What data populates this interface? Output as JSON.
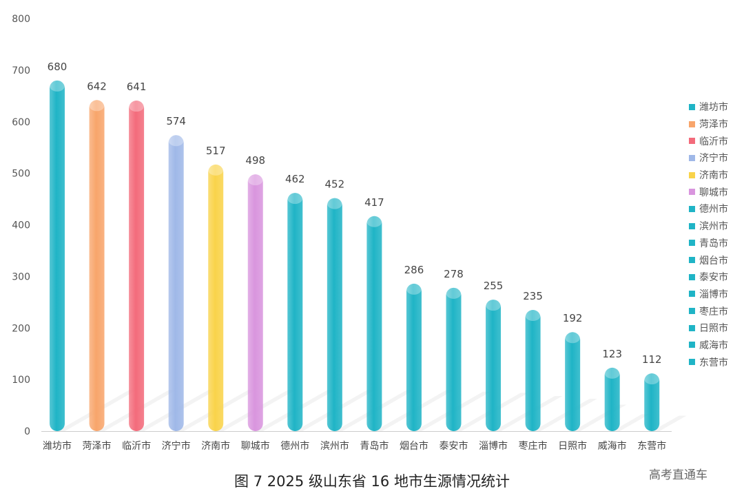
{
  "chart_data": {
    "type": "bar",
    "title": "图 7 2025 级山东省 16 地市生源情况统计",
    "xlabel": "",
    "ylabel": "",
    "ylim": [
      0,
      800
    ],
    "yticks": [
      0,
      100,
      200,
      300,
      400,
      500,
      600,
      700,
      800
    ],
    "grid": false,
    "legend_position": "right",
    "categories": [
      "潍坊市",
      "菏泽市",
      "临沂市",
      "济宁市",
      "济南市",
      "聊城市",
      "德州市",
      "滨州市",
      "青岛市",
      "烟台市",
      "泰安市",
      "淄博市",
      "枣庄市",
      "日照市",
      "威海市",
      "东营市"
    ],
    "values": [
      680,
      642,
      641,
      574,
      517,
      498,
      462,
      452,
      417,
      286,
      278,
      255,
      235,
      192,
      123,
      112
    ],
    "colors": [
      "#1fb4c6",
      "#f8a56b",
      "#f36b7b",
      "#9fb8e8",
      "#f9d34a",
      "#d995de",
      "#1fb4c6",
      "#1fb4c6",
      "#1fb4c6",
      "#1fb4c6",
      "#1fb4c6",
      "#1fb4c6",
      "#1fb4c6",
      "#1fb4c6",
      "#1fb4c6",
      "#1fb4c6"
    ]
  },
  "watermark": "高考直通车"
}
